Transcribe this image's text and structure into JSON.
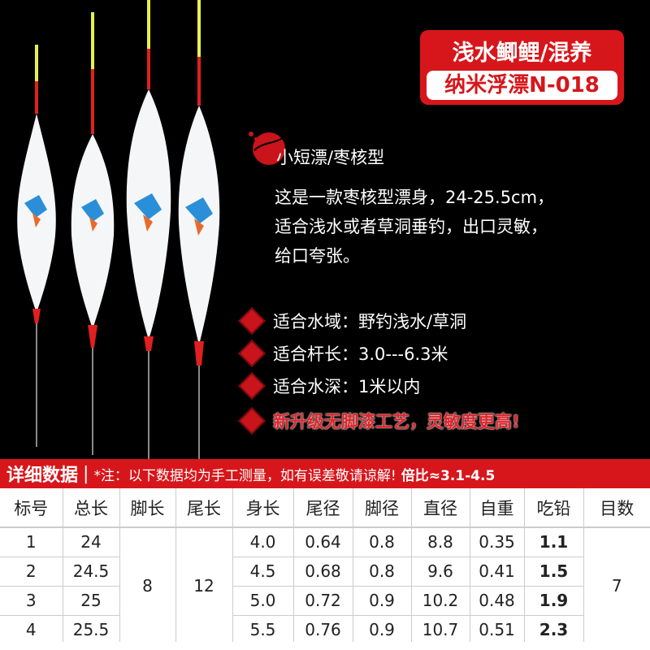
{
  "badge": {
    "line1": "浅水鲫鲤/混养",
    "line2": "纳米浮漂N-018"
  },
  "product": {
    "subtitle": "小短漂/枣核型",
    "description": [
      "这是一款枣核型漂身，24-25.5cm，",
      "适合浅水或者草洞垂钓，出口灵敏，",
      "给口夸张。"
    ],
    "features": [
      {
        "text": "适合水域：野钓浅水/草洞",
        "highlight": false
      },
      {
        "text": "适合杆长：3.0---6.3米",
        "highlight": false
      },
      {
        "text": "适合水深：1米以内",
        "highlight": false
      },
      {
        "text": "新升级无脚漆工艺，灵敏度更高!",
        "highlight": true
      }
    ]
  },
  "colors": {
    "brand_red": "#d7161b",
    "antenna_yellow": "#e8f04a"
  },
  "table": {
    "title": "详细数据",
    "note": "*注：以下数据均为手工测量，如有误差敬请谅解!",
    "ratio": "倍比≈3.1-4.5",
    "headers": [
      "标号",
      "总长",
      "脚长",
      "尾长",
      "身长",
      "尾径",
      "脚径",
      "直径",
      "自重",
      "吃铅",
      "目数"
    ],
    "rows": [
      [
        "1",
        "24",
        "4.0",
        "0.64",
        "0.8",
        "8.8",
        "0.35",
        "1.1"
      ],
      [
        "2",
        "24.5",
        "4.5",
        "0.68",
        "0.8",
        "9.6",
        "0.41",
        "1.5"
      ],
      [
        "3",
        "25",
        "5.0",
        "0.72",
        "0.9",
        "10.2",
        "0.48",
        "1.9"
      ],
      [
        "4",
        "25.5",
        "5.5",
        "0.76",
        "0.9",
        "10.7",
        "0.51",
        "2.3"
      ]
    ],
    "foot_length": "8",
    "tail_length": "12",
    "mesh": "7"
  }
}
